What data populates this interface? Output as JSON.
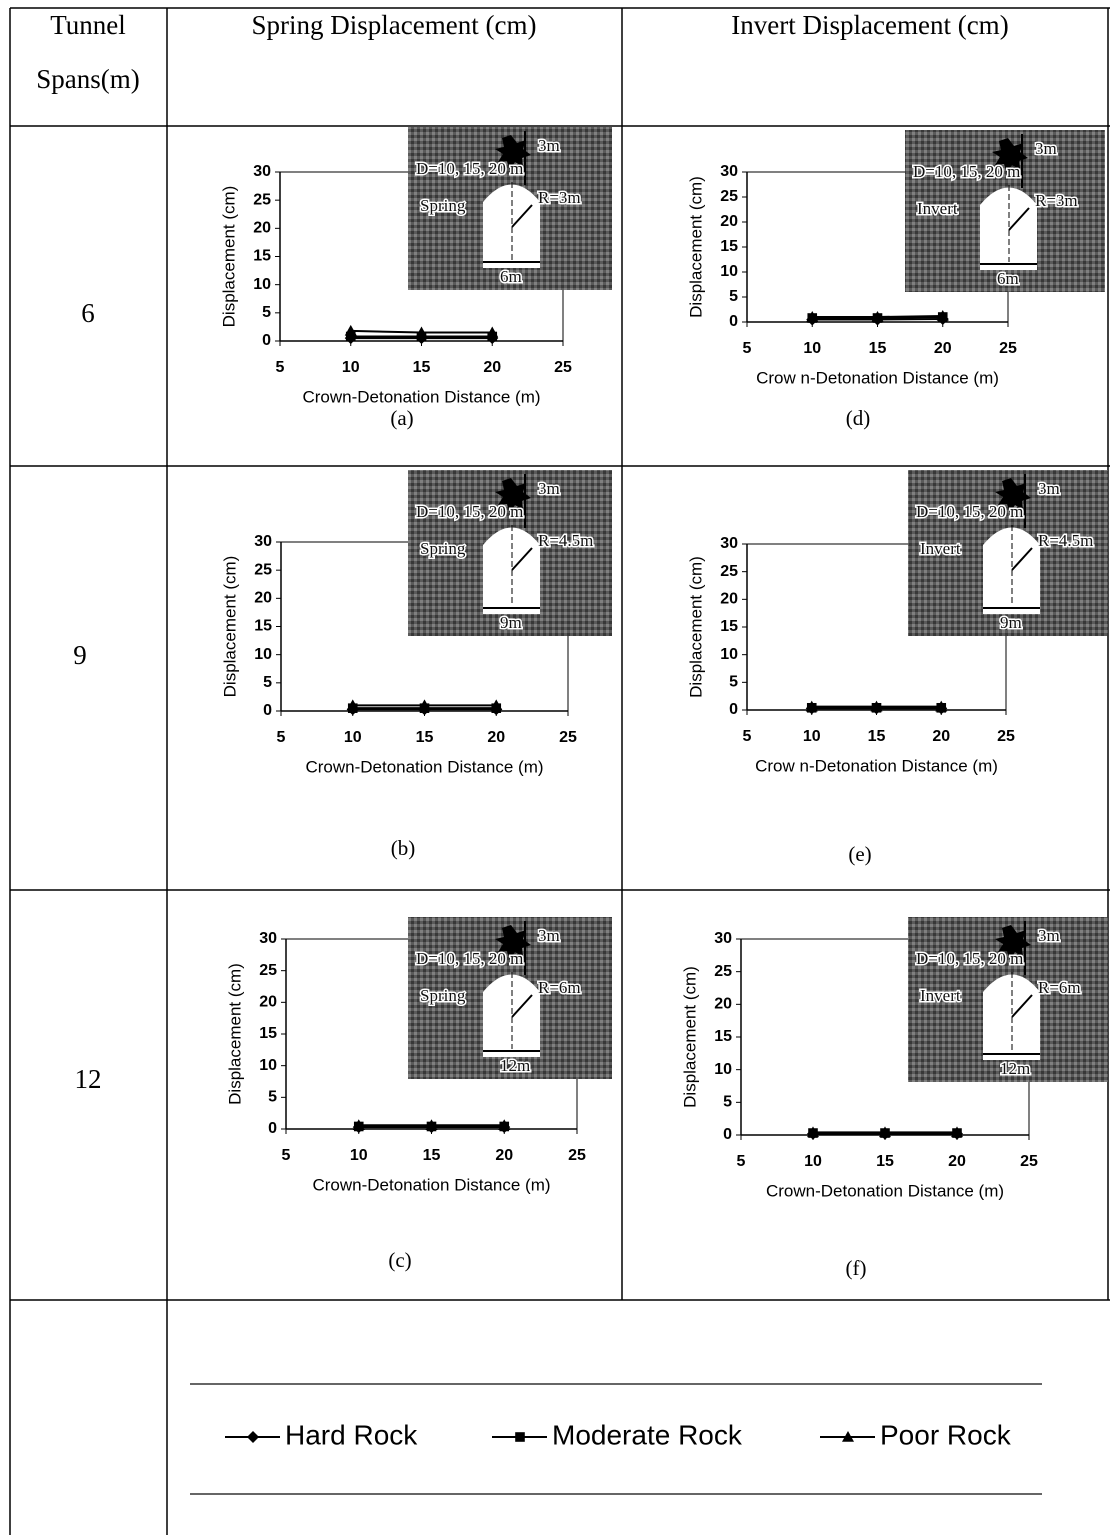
{
  "table": {
    "header": [
      "Tunnel Spans(m)",
      "Spring Displacement (cm)",
      "Invert Displacement (cm)"
    ],
    "rows": [
      "6",
      "9",
      "12"
    ]
  },
  "chart_data": [
    {
      "type": "line",
      "caption": "(a)",
      "x_label": "Crown-Detonation Distance (m)",
      "y_label": "Displacement (cm)",
      "x": [
        10,
        15,
        20
      ],
      "xlim": [
        5,
        25
      ],
      "xticks": [
        5,
        10,
        15,
        20,
        25
      ],
      "ylim": [
        0,
        30
      ],
      "yticks": [
        0,
        5,
        10,
        15,
        20,
        25,
        30
      ],
      "inset": {
        "top": "3m",
        "distance": "D=10, 15, 20 m",
        "point": "Spring",
        "radius": "R=3m",
        "span": "6m"
      },
      "series": [
        {
          "name": "Hard Rock",
          "color": "#000000",
          "marker": "diamond",
          "values": [
            0.5,
            0.5,
            0.5
          ]
        },
        {
          "name": "Moderate Rock",
          "color": "#000000",
          "marker": "square",
          "values": [
            0.8,
            0.8,
            0.8
          ]
        },
        {
          "name": "Poor Rock",
          "color": "#000000",
          "marker": "triangle",
          "values": [
            1.8,
            1.5,
            1.5
          ]
        }
      ]
    },
    {
      "type": "line",
      "caption": "(b)",
      "x_label": "Crown-Detonation Distance (m)",
      "y_label": "Displacement (cm)",
      "x": [
        10,
        15,
        20
      ],
      "xlim": [
        5,
        25
      ],
      "xticks": [
        5,
        10,
        15,
        20,
        25
      ],
      "ylim": [
        0,
        30
      ],
      "yticks": [
        0,
        5,
        10,
        15,
        20,
        25,
        30
      ],
      "inset": {
        "top": "3m",
        "distance": "D=10, 15, 20 m",
        "point": "Spring",
        "radius": "R=4.5m",
        "span": "9m"
      },
      "series": [
        {
          "name": "Hard Rock",
          "color": "#000000",
          "marker": "diamond",
          "values": [
            0.3,
            0.3,
            0.3
          ]
        },
        {
          "name": "Moderate Rock",
          "color": "#000000",
          "marker": "square",
          "values": [
            0.5,
            0.5,
            0.5
          ]
        },
        {
          "name": "Poor Rock",
          "color": "#000000",
          "marker": "triangle",
          "values": [
            1.0,
            1.0,
            1.0
          ]
        }
      ]
    },
    {
      "type": "line",
      "caption": "(c)",
      "x_label": "Crown-Detonation Distance (m)",
      "y_label": "Displacement (cm)",
      "x": [
        10,
        15,
        20
      ],
      "xlim": [
        5,
        25
      ],
      "xticks": [
        5,
        10,
        15,
        20,
        25
      ],
      "ylim": [
        0,
        30
      ],
      "yticks": [
        0,
        5,
        10,
        15,
        20,
        25,
        30
      ],
      "inset": {
        "top": "3m",
        "distance": "D=10, 15, 20 m",
        "point": "Spring",
        "radius": "R=6m",
        "span": "12m"
      },
      "series": [
        {
          "name": "Hard Rock",
          "color": "#000000",
          "marker": "diamond",
          "values": [
            0.3,
            0.3,
            0.3
          ]
        },
        {
          "name": "Moderate Rock",
          "color": "#000000",
          "marker": "square",
          "values": [
            0.4,
            0.4,
            0.4
          ]
        },
        {
          "name": "Poor Rock",
          "color": "#000000",
          "marker": "triangle",
          "values": [
            0.6,
            0.6,
            0.6
          ]
        }
      ]
    },
    {
      "type": "line",
      "caption": "(d)",
      "x_label": "Crow n-Detonation Distance (m)",
      "y_label": "Displacement (cm)",
      "x": [
        10,
        15,
        20
      ],
      "xlim": [
        5,
        25
      ],
      "xticks": [
        5,
        10,
        15,
        20,
        25
      ],
      "ylim": [
        0,
        30
      ],
      "yticks": [
        0,
        5,
        10,
        15,
        20,
        25,
        30
      ],
      "inset": {
        "top": "3m",
        "distance": "D=10, 15, 20 m",
        "point": "Invert",
        "radius": "R=3m",
        "span": "6m"
      },
      "series": [
        {
          "name": "Hard Rock",
          "color": "#000000",
          "marker": "diamond",
          "values": [
            0.5,
            0.5,
            0.6
          ]
        },
        {
          "name": "Moderate Rock",
          "color": "#000000",
          "marker": "square",
          "values": [
            0.8,
            0.8,
            1.0
          ]
        },
        {
          "name": "Poor Rock",
          "color": "#000000",
          "marker": "triangle",
          "values": [
            1.0,
            1.0,
            1.2
          ]
        }
      ]
    },
    {
      "type": "line",
      "caption": "(e)",
      "x_label": "Crow n-Detonation Distance (m)",
      "y_label": "Displacement (cm)",
      "x": [
        10,
        15,
        20
      ],
      "xlim": [
        5,
        25
      ],
      "xticks": [
        5,
        10,
        15,
        20,
        25
      ],
      "ylim": [
        0,
        30
      ],
      "yticks": [
        0,
        5,
        10,
        15,
        20,
        25,
        30
      ],
      "inset": {
        "top": "3m",
        "distance": "D=10, 15, 20 m",
        "point": "Invert",
        "radius": "R=4.5m",
        "span": "9m"
      },
      "series": [
        {
          "name": "Hard Rock",
          "color": "#000000",
          "marker": "diamond",
          "values": [
            0.3,
            0.3,
            0.3
          ]
        },
        {
          "name": "Moderate Rock",
          "color": "#000000",
          "marker": "square",
          "values": [
            0.4,
            0.4,
            0.4
          ]
        },
        {
          "name": "Poor Rock",
          "color": "#000000",
          "marker": "triangle",
          "values": [
            0.6,
            0.6,
            0.6
          ]
        }
      ]
    },
    {
      "type": "line",
      "caption": "(f)",
      "x_label": "Crown-Detonation Distance (m)",
      "y_label": "Displacement (cm)",
      "x": [
        10,
        15,
        20
      ],
      "xlim": [
        5,
        25
      ],
      "xticks": [
        5,
        10,
        15,
        20,
        25
      ],
      "ylim": [
        0,
        30
      ],
      "yticks": [
        0,
        5,
        10,
        15,
        20,
        25,
        30
      ],
      "inset": {
        "top": "3m",
        "distance": "D=10, 15, 20 m",
        "point": "Invert",
        "radius": "R=6m",
        "span": "12m"
      },
      "series": [
        {
          "name": "Hard Rock",
          "color": "#000000",
          "marker": "diamond",
          "values": [
            0.2,
            0.2,
            0.2
          ]
        },
        {
          "name": "Moderate Rock",
          "color": "#000000",
          "marker": "square",
          "values": [
            0.3,
            0.3,
            0.3
          ]
        },
        {
          "name": "Poor Rock",
          "color": "#000000",
          "marker": "triangle",
          "values": [
            0.4,
            0.4,
            0.4
          ]
        }
      ]
    }
  ]
}
